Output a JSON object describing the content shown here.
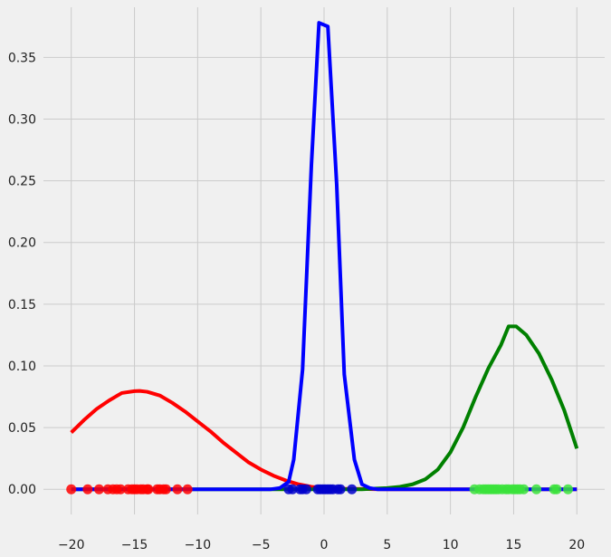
{
  "chart_data": {
    "type": "line",
    "title": "",
    "xlabel": "",
    "ylabel": "",
    "xlim": [
      -22.2,
      22.2
    ],
    "ylim": [
      -0.0204,
      0.3906
    ],
    "grid": true,
    "legend": "none",
    "x_ticks": [
      -20,
      -15,
      -10,
      -5,
      0,
      5,
      10,
      15,
      20
    ],
    "x_tick_labels": [
      "−20",
      "−15",
      "−10",
      "−5",
      "0",
      "5",
      "10",
      "15",
      "20"
    ],
    "y_ticks": [
      0.0,
      0.05,
      0.1,
      0.15,
      0.2,
      0.25,
      0.3,
      0.35
    ],
    "y_tick_labels": [
      "0.00",
      "0.05",
      "0.10",
      "0.15",
      "0.20",
      "0.25",
      "0.30",
      "0.35"
    ],
    "series": [
      {
        "color": "#ff0000",
        "x": [
          -20,
          -19,
          -18,
          -17,
          -16,
          -15,
          -14.6,
          -14,
          -13,
          -12,
          -11,
          -10,
          -9,
          -8,
          -7,
          -6,
          -5,
          -4,
          -3,
          -2,
          -1,
          0,
          1,
          2,
          3,
          4,
          5,
          20
        ],
        "y": [
          0.046,
          0.056,
          0.065,
          0.072,
          0.078,
          0.0795,
          0.0797,
          0.079,
          0.076,
          0.07,
          0.063,
          0.055,
          0.047,
          0.038,
          0.03,
          0.022,
          0.016,
          0.011,
          0.007,
          0.004,
          0.002,
          0.001,
          0.0005,
          0.0003,
          0.0002,
          0.0001,
          0.0,
          0.0
        ]
      },
      {
        "color": "#008000",
        "x": [
          -20,
          3,
          4,
          5,
          6,
          7,
          8,
          9,
          10,
          11,
          12,
          13,
          14,
          14.6,
          15.2,
          16,
          17,
          18,
          19,
          20
        ],
        "y": [
          0.0,
          0.0,
          0.0005,
          0.001,
          0.002,
          0.004,
          0.008,
          0.016,
          0.03,
          0.05,
          0.075,
          0.098,
          0.117,
          0.132,
          0.132,
          0.125,
          0.11,
          0.089,
          0.064,
          0.033
        ]
      },
      {
        "color": "#0000ff",
        "x": [
          -20,
          -4.2,
          -3.5,
          -2.8,
          -2.4,
          -1.7,
          -1.0,
          -0.4,
          0.3,
          1.0,
          1.6,
          2.4,
          3.0,
          3.6,
          4.2,
          20
        ],
        "y": [
          0.0,
          0.0,
          0.001,
          0.006,
          0.024,
          0.097,
          0.263,
          0.378,
          0.375,
          0.247,
          0.093,
          0.024,
          0.004,
          0.001,
          0.0,
          0.0
        ]
      }
    ],
    "points": [
      {
        "color": "#ff0000",
        "x": [
          -20.0,
          -18.7,
          -17.8,
          -17.1,
          -16.7,
          -16.4,
          -16.1,
          -15.5,
          -15.2,
          -15.0,
          -14.8,
          -14.5,
          -14.3,
          -14.0,
          -13.9,
          -13.2,
          -13.0,
          -12.7,
          -12.5,
          -11.6,
          -10.8
        ],
        "y": 0.0
      },
      {
        "color": "#3be33b",
        "x": [
          11.9,
          12.3,
          12.6,
          12.8,
          13.0,
          13.2,
          13.4,
          13.6,
          13.8,
          14.1,
          14.4,
          14.6,
          14.9,
          15.1,
          15.3,
          15.5,
          15.8,
          16.8,
          18.2,
          18.4,
          19.3
        ],
        "y": 0.0
      },
      {
        "color": "#0000cc",
        "x": [
          -2.8,
          -2.5,
          -1.9,
          -1.7,
          -1.4,
          -0.5,
          -0.3,
          -0.1,
          0.1,
          0.3,
          0.5,
          0.7,
          1.1,
          1.3,
          2.2
        ],
        "y": 0.0
      }
    ]
  }
}
